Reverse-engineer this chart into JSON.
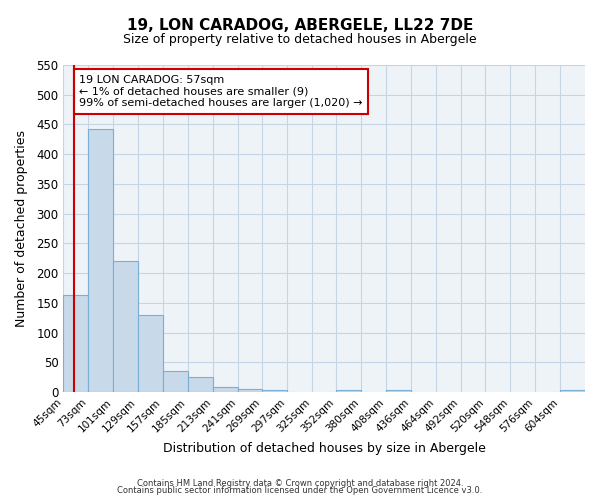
{
  "title": "19, LON CARADOG, ABERGELE, LL22 7DE",
  "subtitle": "Size of property relative to detached houses in Abergele",
  "xlabel": "Distribution of detached houses by size in Abergele",
  "ylabel": "Number of detached properties",
  "bar_labels": [
    "45sqm",
    "73sqm",
    "101sqm",
    "129sqm",
    "157sqm",
    "185sqm",
    "213sqm",
    "241sqm",
    "269sqm",
    "297sqm",
    "325sqm",
    "352sqm",
    "380sqm",
    "408sqm",
    "436sqm",
    "464sqm",
    "492sqm",
    "520sqm",
    "548sqm",
    "576sqm",
    "604sqm"
  ],
  "bar_values": [
    163,
    443,
    220,
    130,
    36,
    25,
    8,
    5,
    4,
    0,
    0,
    4,
    0,
    3,
    0,
    0,
    0,
    0,
    0,
    0,
    4
  ],
  "bar_color": "#c8daea",
  "bar_edge_color": "#7aafd4",
  "ylim": [
    0,
    550
  ],
  "yticks": [
    0,
    50,
    100,
    150,
    200,
    250,
    300,
    350,
    400,
    450,
    500,
    550
  ],
  "bin_edges": [
    45,
    73,
    101,
    129,
    157,
    185,
    213,
    241,
    269,
    297,
    325,
    352,
    380,
    408,
    436,
    464,
    492,
    520,
    548,
    576,
    604,
    632
  ],
  "property_line_x": 57,
  "property_line_color": "#cc0000",
  "annotation_title": "19 LON CARADOG: 57sqm",
  "annotation_line1": "← 1% of detached houses are smaller (9)",
  "annotation_line2": "99% of semi-detached houses are larger (1,020) →",
  "annotation_box_color": "#cc0000",
  "footer_line1": "Contains HM Land Registry data © Crown copyright and database right 2024.",
  "footer_line2": "Contains public sector information licensed under the Open Government Licence v3.0.",
  "background_color": "#ffffff",
  "grid_color": "#c5d5e5",
  "plot_bg_color": "#eef3f8"
}
